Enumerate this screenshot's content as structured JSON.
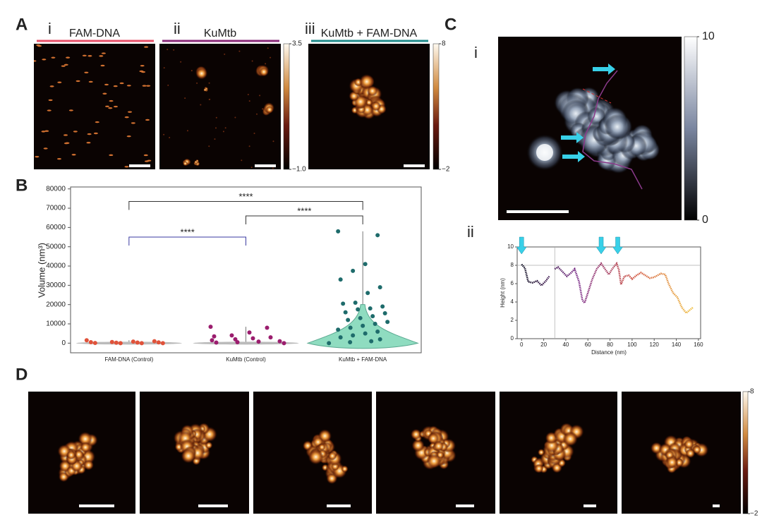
{
  "panel_a": {
    "label": "A",
    "images": [
      {
        "numeral": "i",
        "title": "FAM-DNA",
        "color": "#e8506a"
      },
      {
        "numeral": "ii",
        "title": "KuMtb",
        "color": "#8a2a78"
      },
      {
        "numeral": "iii",
        "title": "KuMtb + FAM-DNA",
        "color": "#1f8a8a"
      }
    ],
    "colorbars": [
      {
        "lim": [
          -1,
          3.5
        ],
        "ticks": [
          3.5,
          {
            "value": -1,
            "label": "−1.0"
          }
        ]
      },
      {
        "lim": [
          -2,
          8
        ],
        "ticks": [
          8,
          {
            "value": -2,
            "label": "−2"
          }
        ]
      }
    ]
  },
  "panel_b": {
    "label": "B"
  },
  "panel_c": {
    "label": "C",
    "sub_labels": [
      "i",
      "ii"
    ],
    "colorbar": {
      "lim": [
        0,
        10
      ],
      "ticks": [
        10,
        0
      ]
    }
  },
  "panel_d": {
    "label": "D",
    "colorbar": {
      "lim": [
        -2,
        8
      ],
      "ticks": [
        8,
        {
          "value": -2,
          "label": "−2"
        }
      ]
    }
  },
  "chart_data": [
    {
      "type": "violin",
      "y_label": "Volume (nm³)",
      "categories": [
        "FAM-DNA (Control)",
        "KuMtb (Control)",
        "KuMtb + FAM-DNA"
      ],
      "points": [
        [
          1500,
          1000,
          800,
          600,
          500,
          400,
          300,
          200,
          100,
          0,
          0,
          0
        ],
        [
          8500,
          8000,
          5500,
          4000,
          3500,
          3000,
          2500,
          2000,
          1500,
          1000,
          800,
          500,
          300,
          0
        ],
        [
          58000,
          56000,
          41000,
          37500,
          33000,
          29000,
          26000,
          21000,
          20500,
          19000,
          18000,
          17500,
          16000,
          15500,
          14000,
          13000,
          12000,
          11000,
          10000,
          9000,
          8000,
          7000,
          6000,
          5000,
          4000,
          3000,
          2000,
          1000,
          500,
          0
        ]
      ],
      "colors": [
        "#e0523a",
        "#9b1d6e",
        "#1e6b6b"
      ],
      "violin_color": "#8fdcc0",
      "ylim": [
        -5000,
        81000
      ],
      "yticks": [
        0,
        10000,
        20000,
        30000,
        40000,
        50000,
        60000,
        70000,
        80000
      ],
      "brackets": [
        {
          "text": "****",
          "from": "FAM-DNA (Control)",
          "to": "KuMtb (Control)",
          "y": 55000,
          "color": "#3a3aa0"
        },
        {
          "text": "****",
          "from": "KuMtb (Control)",
          "to": "KuMtb + FAM-DNA",
          "y": 66000,
          "color": "#333333"
        },
        {
          "text": "****",
          "from": "FAM-DNA (Control)",
          "to": "KuMtb + FAM-DNA",
          "y": 73500,
          "color": "#333333"
        }
      ]
    },
    {
      "type": "line",
      "x_label": "Distance (nm)",
      "y_label": "Height (nm)",
      "x": [
        0,
        3,
        6,
        10,
        14,
        18,
        22,
        25,
        28,
        30,
        33,
        37,
        41,
        45,
        48,
        52,
        55,
        57,
        60,
        64,
        68,
        72,
        76,
        79,
        82,
        86,
        88,
        90,
        93,
        97,
        100,
        104,
        108,
        112,
        116,
        120,
        126,
        130,
        133,
        137,
        141,
        145,
        149,
        152,
        155
      ],
      "values": [
        8.1,
        7.7,
        6.2,
        6.1,
        6.3,
        5.8,
        6.3,
        6.8,
        null,
        7.6,
        7.8,
        7.3,
        6.8,
        7.2,
        7.6,
        6.2,
        4.2,
        3.9,
        5.0,
        6.5,
        7.6,
        8.2,
        7.5,
        7.0,
        7.6,
        8.2,
        7.5,
        5.9,
        6.8,
        6.9,
        6.5,
        6.9,
        7.2,
        6.9,
        6.6,
        6.7,
        7.1,
        7.0,
        6.0,
        5.0,
        4.5,
        3.4,
        2.8,
        3.1,
        3.4
      ],
      "colormap": [
        "#0a0a1e",
        "#7a2a88",
        "#d0503a",
        "#f0c040"
      ],
      "xlim": [
        -4,
        162
      ],
      "xticks": [
        0,
        20,
        40,
        60,
        80,
        100,
        120,
        140,
        160
      ],
      "ylim": [
        0,
        10
      ],
      "yticks": [
        0,
        2,
        4,
        6,
        8,
        10
      ],
      "reference_y": 8,
      "reference_x": 30,
      "arrows_x": [
        0,
        72,
        87
      ],
      "arrow_color": "#38d0e8"
    }
  ]
}
